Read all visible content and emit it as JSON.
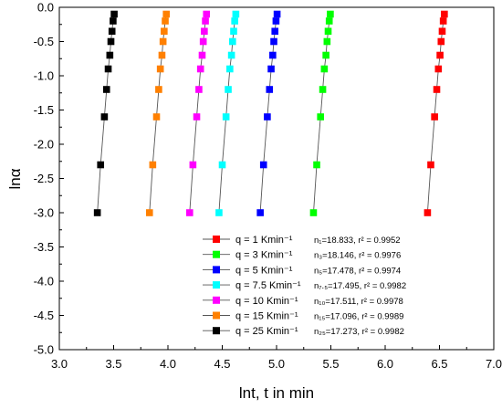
{
  "chart_data": {
    "type": "scatter",
    "xlabel": "lnt, t in min",
    "ylabel": "lnα",
    "xlim": [
      3.0,
      7.0
    ],
    "ylim": [
      -5.0,
      0.0
    ],
    "x_ticks": [
      "3.0",
      "3.5",
      "4.0",
      "4.5",
      "5.0",
      "5.5",
      "6.0",
      "6.5",
      "7.0"
    ],
    "y_ticks": [
      "0.0",
      "-0.5",
      "-1.0",
      "-1.5",
      "-2.0",
      "-2.5",
      "-3.0",
      "-3.5",
      "-4.0",
      "-4.5",
      "-5.0"
    ],
    "y_values": [
      -3.0,
      -2.3,
      -1.6,
      -1.2,
      -0.9,
      -0.7,
      -0.5,
      -0.35,
      -0.2,
      -0.1
    ],
    "legend_position": "bottom-right",
    "series": [
      {
        "name": "q = 1 Kmin⁻¹",
        "fit": "n₁=18.833, r² = 0.9952",
        "color": "#ff0000",
        "x": [
          6.39,
          6.42,
          6.455,
          6.475,
          6.49,
          6.505,
          6.515,
          6.525,
          6.535,
          6.545
        ],
        "y": [
          -3.0,
          -2.3,
          -1.6,
          -1.2,
          -0.9,
          -0.7,
          -0.5,
          -0.35,
          -0.2,
          -0.1
        ]
      },
      {
        "name": "q = 3 Kmin⁻¹",
        "fit": "n₃=18.146, r² = 0.9976",
        "color": "#00ff00",
        "x": [
          5.34,
          5.37,
          5.405,
          5.425,
          5.44,
          5.455,
          5.465,
          5.475,
          5.485,
          5.495
        ],
        "y": [
          -3.0,
          -2.3,
          -1.6,
          -1.2,
          -0.9,
          -0.7,
          -0.5,
          -0.35,
          -0.2,
          -0.1
        ]
      },
      {
        "name": "q = 5 Kmin⁻¹",
        "fit": "n₅=17.478, r² = 0.9974",
        "color": "#0000ff",
        "x": [
          4.85,
          4.88,
          4.915,
          4.935,
          4.95,
          4.965,
          4.975,
          4.985,
          4.995,
          5.005
        ],
        "y": [
          -3.0,
          -2.3,
          -1.6,
          -1.2,
          -0.9,
          -0.7,
          -0.5,
          -0.35,
          -0.2,
          -0.1
        ]
      },
      {
        "name": "q = 7.5 Kmin⁻¹",
        "fit": "n₇.₅=17.495, r² = 0.9982",
        "color": "#00ffff",
        "x": [
          4.47,
          4.5,
          4.535,
          4.555,
          4.57,
          4.585,
          4.595,
          4.605,
          4.615,
          4.625
        ],
        "y": [
          -3.0,
          -2.3,
          -1.6,
          -1.2,
          -0.9,
          -0.7,
          -0.5,
          -0.35,
          -0.2,
          -0.1
        ]
      },
      {
        "name": "q = 10 Kmin⁻¹",
        "fit": "n₁₀=17.511, r² = 0.9978",
        "color": "#ff00ff",
        "x": [
          4.2,
          4.23,
          4.265,
          4.285,
          4.3,
          4.315,
          4.325,
          4.335,
          4.345,
          4.355
        ],
        "y": [
          -3.0,
          -2.3,
          -1.6,
          -1.2,
          -0.9,
          -0.7,
          -0.5,
          -0.35,
          -0.2,
          -0.1
        ]
      },
      {
        "name": "q = 15 Kmin⁻¹",
        "fit": "n₁₅=17.096, r² = 0.9989",
        "color": "#ff8000",
        "x": [
          3.83,
          3.86,
          3.895,
          3.915,
          3.93,
          3.945,
          3.955,
          3.965,
          3.975,
          3.985
        ],
        "y": [
          -3.0,
          -2.3,
          -1.6,
          -1.2,
          -0.9,
          -0.7,
          -0.5,
          -0.35,
          -0.2,
          -0.1
        ]
      },
      {
        "name": "q = 25 Kmin⁻¹",
        "fit": "n₂₅=17.273, r² = 0.9982",
        "color": "#000000",
        "x": [
          3.35,
          3.38,
          3.415,
          3.435,
          3.45,
          3.465,
          3.475,
          3.485,
          3.495,
          3.505
        ],
        "y": [
          -3.0,
          -2.3,
          -1.6,
          -1.2,
          -0.9,
          -0.7,
          -0.5,
          -0.35,
          -0.2,
          -0.1
        ]
      }
    ]
  }
}
